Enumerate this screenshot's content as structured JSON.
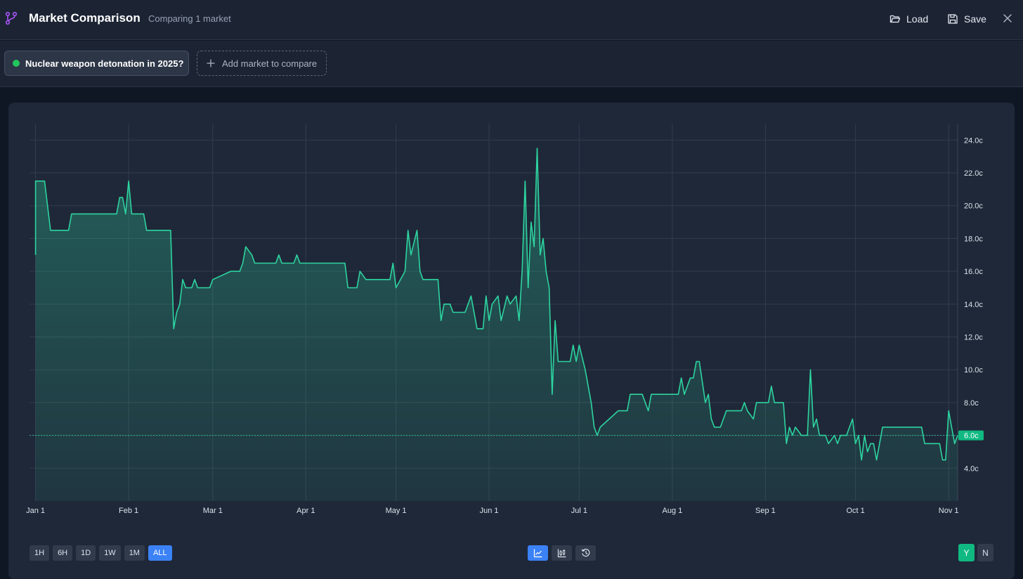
{
  "header": {
    "title": "Market Comparison",
    "subtitle": "Comparing 1 market",
    "load_label": "Load",
    "save_label": "Save"
  },
  "markets": {
    "selected_label": "Nuclear weapon detonation in 2025?",
    "selected_color": "#22c55e",
    "add_label": "Add market to compare"
  },
  "chart_data": {
    "type": "line",
    "series": [
      {
        "color": "#2dd4a0",
        "points": [
          [
            "2025-01-01",
            17.0
          ],
          [
            "2025-01-01",
            21.5
          ],
          [
            "2025-01-04",
            21.5
          ],
          [
            "2025-01-06",
            18.5
          ],
          [
            "2025-01-12",
            18.5
          ],
          [
            "2025-01-13",
            19.5
          ],
          [
            "2025-01-21",
            19.5
          ],
          [
            "2025-01-28",
            19.5
          ],
          [
            "2025-01-29",
            20.5
          ],
          [
            "2025-01-30",
            20.5
          ],
          [
            "2025-01-31",
            19.5
          ],
          [
            "2025-02-01",
            21.5
          ],
          [
            "2025-02-02",
            19.5
          ],
          [
            "2025-02-06",
            19.5
          ],
          [
            "2025-02-07",
            18.5
          ],
          [
            "2025-02-15",
            18.5
          ],
          [
            "2025-02-16",
            12.5
          ],
          [
            "2025-02-17",
            13.5
          ],
          [
            "2025-02-18",
            14.0
          ],
          [
            "2025-02-19",
            15.5
          ],
          [
            "2025-02-20",
            15.0
          ],
          [
            "2025-02-22",
            15.0
          ],
          [
            "2025-02-23",
            15.5
          ],
          [
            "2025-02-24",
            15.0
          ],
          [
            "2025-02-28",
            15.0
          ],
          [
            "2025-03-01",
            15.5
          ],
          [
            "2025-03-07",
            16.0
          ],
          [
            "2025-03-10",
            16.0
          ],
          [
            "2025-03-11",
            16.5
          ],
          [
            "2025-03-12",
            17.5
          ],
          [
            "2025-03-14",
            17.0
          ],
          [
            "2025-03-15",
            16.5
          ],
          [
            "2025-03-22",
            16.5
          ],
          [
            "2025-03-23",
            17.0
          ],
          [
            "2025-03-24",
            16.5
          ],
          [
            "2025-03-28",
            16.5
          ],
          [
            "2025-03-29",
            17.0
          ],
          [
            "2025-03-30",
            16.5
          ],
          [
            "2025-04-14",
            16.5
          ],
          [
            "2025-04-15",
            15.0
          ],
          [
            "2025-04-18",
            15.0
          ],
          [
            "2025-04-19",
            16.0
          ],
          [
            "2025-04-21",
            15.5
          ],
          [
            "2025-04-29",
            15.5
          ],
          [
            "2025-04-30",
            16.5
          ],
          [
            "2025-05-01",
            15.0
          ],
          [
            "2025-05-04",
            16.0
          ],
          [
            "2025-05-05",
            18.5
          ],
          [
            "2025-05-06",
            17.0
          ],
          [
            "2025-05-08",
            18.5
          ],
          [
            "2025-05-09",
            16.0
          ],
          [
            "2025-05-10",
            15.5
          ],
          [
            "2025-05-15",
            15.5
          ],
          [
            "2025-05-16",
            13.0
          ],
          [
            "2025-05-17",
            14.0
          ],
          [
            "2025-05-19",
            14.0
          ],
          [
            "2025-05-20",
            13.5
          ],
          [
            "2025-05-24",
            13.5
          ],
          [
            "2025-05-25",
            14.0
          ],
          [
            "2025-05-26",
            14.5
          ],
          [
            "2025-05-28",
            12.5
          ],
          [
            "2025-05-30",
            12.5
          ],
          [
            "2025-05-31",
            14.5
          ],
          [
            "2025-06-01",
            13.0
          ],
          [
            "2025-06-02",
            14.0
          ],
          [
            "2025-06-04",
            14.5
          ],
          [
            "2025-06-05",
            13.0
          ],
          [
            "2025-06-07",
            14.5
          ],
          [
            "2025-06-08",
            14.0
          ],
          [
            "2025-06-10",
            14.5
          ],
          [
            "2025-06-11",
            13.0
          ],
          [
            "2025-06-12",
            16.0
          ],
          [
            "2025-06-13",
            21.5
          ],
          [
            "2025-06-14",
            15.0
          ],
          [
            "2025-06-15",
            19.0
          ],
          [
            "2025-06-16",
            17.5
          ],
          [
            "2025-06-17",
            23.5
          ],
          [
            "2025-06-18",
            17.0
          ],
          [
            "2025-06-19",
            18.0
          ],
          [
            "2025-06-20",
            16.0
          ],
          [
            "2025-06-21",
            15.0
          ],
          [
            "2025-06-22",
            8.5
          ],
          [
            "2025-06-23",
            13.0
          ],
          [
            "2025-06-24",
            10.5
          ],
          [
            "2025-06-28",
            10.5
          ],
          [
            "2025-06-29",
            11.5
          ],
          [
            "2025-06-30",
            10.5
          ],
          [
            "2025-07-01",
            11.5
          ],
          [
            "2025-07-03",
            10.0
          ],
          [
            "2025-07-05",
            8.0
          ],
          [
            "2025-07-06",
            6.5
          ],
          [
            "2025-07-07",
            6.0
          ],
          [
            "2025-07-08",
            6.5
          ],
          [
            "2025-07-14",
            7.5
          ],
          [
            "2025-07-17",
            7.5
          ],
          [
            "2025-07-18",
            8.5
          ],
          [
            "2025-07-22",
            8.5
          ],
          [
            "2025-07-24",
            7.5
          ],
          [
            "2025-07-25",
            8.5
          ],
          [
            "2025-07-31",
            8.5
          ],
          [
            "2025-08-03",
            8.5
          ],
          [
            "2025-08-04",
            9.5
          ],
          [
            "2025-08-05",
            8.5
          ],
          [
            "2025-08-07",
            9.5
          ],
          [
            "2025-08-08",
            9.5
          ],
          [
            "2025-08-09",
            10.5
          ],
          [
            "2025-08-10",
            10.5
          ],
          [
            "2025-08-12",
            8.0
          ],
          [
            "2025-08-13",
            8.5
          ],
          [
            "2025-08-14",
            7.0
          ],
          [
            "2025-08-15",
            6.5
          ],
          [
            "2025-08-17",
            6.5
          ],
          [
            "2025-08-19",
            7.5
          ],
          [
            "2025-08-24",
            7.5
          ],
          [
            "2025-08-25",
            8.0
          ],
          [
            "2025-08-26",
            7.5
          ],
          [
            "2025-08-28",
            7.0
          ],
          [
            "2025-08-29",
            8.0
          ],
          [
            "2025-09-02",
            8.0
          ],
          [
            "2025-09-03",
            9.0
          ],
          [
            "2025-09-04",
            8.0
          ],
          [
            "2025-09-07",
            8.0
          ],
          [
            "2025-09-08",
            5.5
          ],
          [
            "2025-09-09",
            6.5
          ],
          [
            "2025-09-10",
            6.0
          ],
          [
            "2025-09-11",
            6.5
          ],
          [
            "2025-09-13",
            6.0
          ],
          [
            "2025-09-15",
            6.0
          ],
          [
            "2025-09-16",
            10.0
          ],
          [
            "2025-09-17",
            6.5
          ],
          [
            "2025-09-18",
            7.0
          ],
          [
            "2025-09-19",
            6.0
          ],
          [
            "2025-09-21",
            6.0
          ],
          [
            "2025-09-22",
            5.5
          ],
          [
            "2025-09-24",
            6.0
          ],
          [
            "2025-09-25",
            5.5
          ],
          [
            "2025-09-26",
            6.0
          ],
          [
            "2025-09-28",
            6.0
          ],
          [
            "2025-09-29",
            6.5
          ],
          [
            "2025-09-30",
            7.0
          ],
          [
            "2025-10-01",
            5.5
          ],
          [
            "2025-10-02",
            6.0
          ],
          [
            "2025-10-03",
            4.5
          ],
          [
            "2025-10-04",
            6.0
          ],
          [
            "2025-10-05",
            5.0
          ],
          [
            "2025-10-06",
            5.5
          ],
          [
            "2025-10-07",
            5.5
          ],
          [
            "2025-10-08",
            4.5
          ],
          [
            "2025-10-10",
            6.5
          ],
          [
            "2025-10-23",
            6.5
          ],
          [
            "2025-10-24",
            5.5
          ],
          [
            "2025-10-29",
            5.5
          ],
          [
            "2025-10-30",
            4.5
          ],
          [
            "2025-10-31",
            4.5
          ],
          [
            "2025-11-01",
            7.5
          ],
          [
            "2025-11-02",
            6.5
          ],
          [
            "2025-11-03",
            5.5
          ],
          [
            "2025-11-04",
            6.0
          ]
        ]
      }
    ],
    "x_ticks": [
      {
        "date": "2025-01-01",
        "label": "Jan 1"
      },
      {
        "date": "2025-02-01",
        "label": "Feb 1"
      },
      {
        "date": "2025-03-01",
        "label": "Mar 1"
      },
      {
        "date": "2025-04-01",
        "label": "Apr 1"
      },
      {
        "date": "2025-05-01",
        "label": "May 1"
      },
      {
        "date": "2025-06-01",
        "label": "Jun 1"
      },
      {
        "date": "2025-07-01",
        "label": "Jul 1"
      },
      {
        "date": "2025-08-01",
        "label": "Aug 1"
      },
      {
        "date": "2025-09-01",
        "label": "Sep 1"
      },
      {
        "date": "2025-10-01",
        "label": "Oct 1"
      },
      {
        "date": "2025-11-01",
        "label": "Nov 1"
      }
    ],
    "x_range": [
      "2024-12-30",
      "2025-11-04"
    ],
    "y_ticks": [
      4,
      6,
      8,
      10,
      12,
      14,
      16,
      18,
      20,
      22,
      24
    ],
    "y_range": [
      2,
      25
    ],
    "y_tick_suffix": "c",
    "current_value": 6.0,
    "current_label": "6.0c",
    "grid": true
  },
  "controls": {
    "timeframes": [
      "1H",
      "6H",
      "1D",
      "1W",
      "1M",
      "ALL"
    ],
    "active_timeframe": "ALL",
    "views": [
      {
        "icon": "line-chart-icon",
        "active": true
      },
      {
        "icon": "candlestick-icon",
        "active": false
      },
      {
        "icon": "history-icon",
        "active": false
      }
    ],
    "outcomes": [
      "Y",
      "N"
    ],
    "active_outcome": "Y"
  }
}
